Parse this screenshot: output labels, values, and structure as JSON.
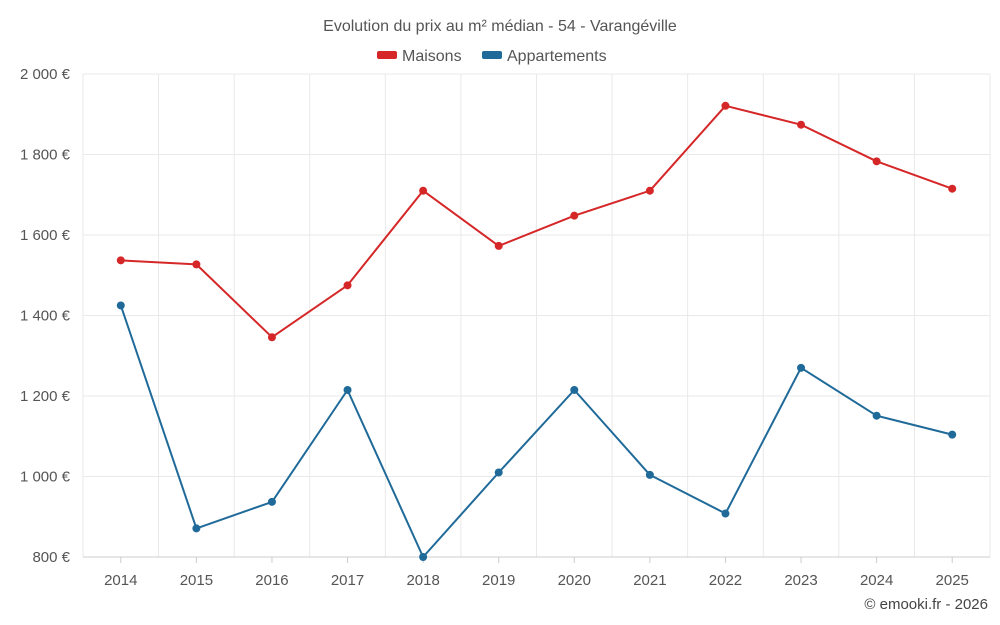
{
  "chart_data": {
    "type": "line",
    "title": "Evolution du prix au m² médian - 54 - Varangéville",
    "categories": [
      "2014",
      "2015",
      "2016",
      "2017",
      "2018",
      "2019",
      "2020",
      "2021",
      "2022",
      "2023",
      "2024",
      "2025"
    ],
    "series": [
      {
        "name": "Maisons",
        "color": "#d62728",
        "values": [
          1537,
          1527,
          1346,
          1475,
          1710,
          1573,
          1648,
          1710,
          1921,
          1874,
          1783,
          1715
        ]
      },
      {
        "name": "Appartements",
        "color": "#1f6a99",
        "values": [
          1425,
          871,
          937,
          1215,
          800,
          1010,
          1215,
          1004,
          908,
          1270,
          1151,
          1104
        ]
      }
    ],
    "y_ticks": [
      800,
      1000,
      1200,
      1400,
      1600,
      1800,
      2000
    ],
    "y_tick_labels": [
      "800 €",
      "1 000 €",
      "1 200 €",
      "1 400 €",
      "1 600 €",
      "1 800 €",
      "2 000 €"
    ],
    "ylim": [
      800,
      2000
    ],
    "grid": true,
    "legend_position": "top-center",
    "credit": "© emooki.fr - 2026"
  }
}
